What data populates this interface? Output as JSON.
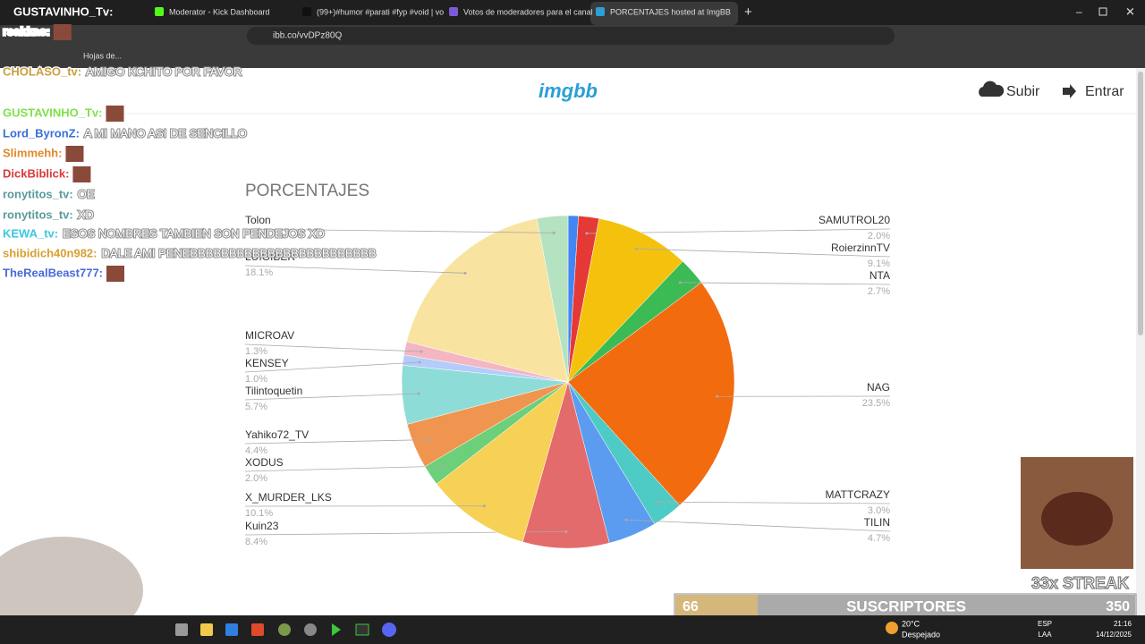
{
  "browser": {
    "tabs": [
      {
        "title": "GUSTAVINHO_Tv:"
      },
      {
        "title": "Moderator - Kick Dashboard"
      },
      {
        "title": "(99+)#humor #parati #fyp #void | vo"
      },
      {
        "title": "Votos de moderadores para el canal"
      },
      {
        "title": "PORCENTAJES hosted at ImgBB"
      }
    ],
    "url": "ibb.co/vvDPz80Q",
    "bookmark": "Hojas de..."
  },
  "site": {
    "logo": "imgbb",
    "upload": "Subir",
    "login": "Entrar"
  },
  "chart_data": {
    "type": "pie",
    "title": "PORCENTAJES",
    "categories": [
      null,
      "SAMUTROL20",
      "RoierzinnTV",
      "NTA",
      "NAG",
      "MATTCRAZY",
      "TILIN",
      "Kuin23",
      "X_MURDER_LKS",
      "XODUS",
      "Yahiko72_TV",
      "Tilintoquetin",
      "KENSEY",
      "MICROAV",
      "LUIGIBER",
      "Tolon"
    ],
    "values": [
      1.0,
      2.0,
      9.1,
      2.7,
      23.5,
      3.0,
      4.7,
      8.4,
      10.1,
      2.0,
      4.4,
      5.7,
      1.0,
      1.3,
      18.1,
      3.0
    ],
    "value_labels": [
      null,
      "2.0%",
      "9.1%",
      "2.7%",
      "23.5%",
      "3.0%",
      "4.7%",
      "8.4%",
      "10.1%",
      "2.0%",
      "4.4%",
      "5.7%",
      "1.0%",
      "1.3%",
      "18.1%",
      null
    ],
    "colors": [
      "#4285f4",
      "#e53935",
      "#f4c20d",
      "#3cba54",
      "#f26b0f",
      "#4ecbc4",
      "#5b9cf0",
      "#e46b6b",
      "#f6d155",
      "#6ccf7a",
      "#f0954f",
      "#8edcd8",
      "#b3ccfa",
      "#f4b6c2",
      "#f8e4a0",
      "#b5e2c0"
    ]
  },
  "chat": [
    {
      "user": "rsakkas:",
      "color": "#ffffff"
    },
    {
      "user": "CHOLASO_tv:",
      "message": "AMIGO KCHITO POR FAVOR",
      "color": "#c8a040"
    },
    {
      "user": "GUSTAVINHO_Tv:",
      "color": "#7fe04a"
    },
    {
      "user": "Lord_ByronZ:",
      "message": "A MI MANO ASI DE SENCILLO",
      "color": "#3a6fd8"
    },
    {
      "user": "Slimmehh:",
      "color": "#e08a2a"
    },
    {
      "user": "DickBiblick:",
      "color": "#d83a3a"
    },
    {
      "user": "ronytitos_tv:",
      "message": "OE",
      "color": "#5a9a9a"
    },
    {
      "user": "ronytitos_tv:",
      "message": "XD",
      "color": "#5a9a9a"
    },
    {
      "user": "KEWA_tv:",
      "message": "ESOS NOMBRES TAMBIEN SON PENDEJOS XD",
      "color": "#3ac8e0"
    },
    {
      "user": "shibidich40n982:",
      "message": "DALE AMI PENEBBBBBBBBBBBBBBBBBBBBBBBB",
      "color": "#d8a030"
    },
    {
      "user": "TheRealBeast777:",
      "color": "#4a6ad8"
    }
  ],
  "overlay": {
    "count": "66",
    "label": "SUSCRIPTORES",
    "goal": "350",
    "streak": "33x STREAK"
  },
  "taskbar": {
    "temp": "20°C",
    "weather": "Despejado",
    "lang": "ESP",
    "layout": "LAA",
    "time": "21:16",
    "date": "14/12/2025"
  }
}
